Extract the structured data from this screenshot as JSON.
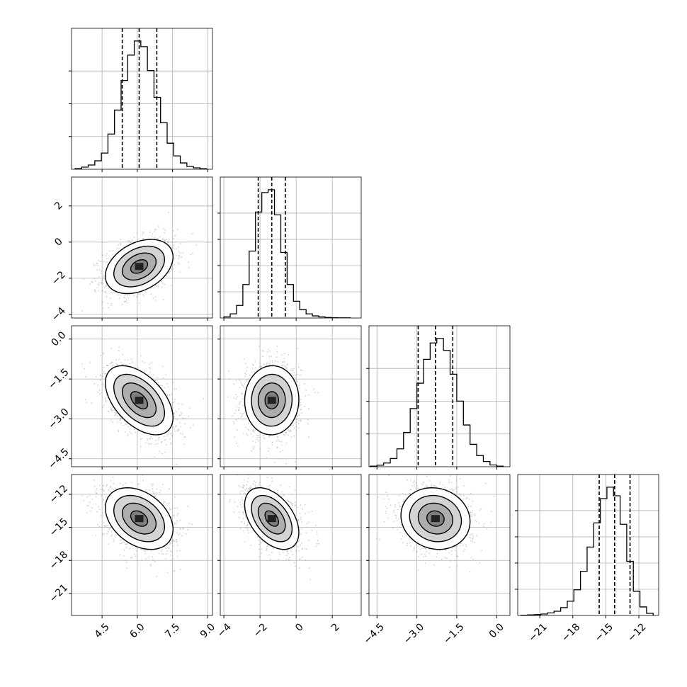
{
  "chart_data": {
    "type": "corner",
    "title": "",
    "variables": [
      {
        "name": "",
        "range": [
          3.2,
          9.2
        ],
        "ticks": [
          4.5,
          6.0,
          7.5,
          9.0
        ],
        "tick_labels": [
          "4.5",
          "6.0",
          "7.5",
          "9.0"
        ],
        "quantiles": [
          5.36,
          6.08,
          6.83
        ],
        "mean": 6.08,
        "sd": 0.72
      },
      {
        "name": "",
        "range": [
          -4.2,
          3.6
        ],
        "ticks": [
          -4,
          -2,
          0,
          2
        ],
        "tick_labels": [
          "−4",
          "−2",
          "0",
          "2"
        ],
        "quantiles": [
          -2.1,
          -1.35,
          -0.6
        ],
        "mean": -1.35,
        "sd": 0.75
      },
      {
        "name": "",
        "range": [
          -4.8,
          0.5
        ],
        "ticks": [
          -4.5,
          -3.0,
          -1.5,
          0.0
        ],
        "tick_labels": [
          "−4.5",
          "−3.0",
          "−1.5",
          "0.0"
        ],
        "quantiles": [
          -2.95,
          -2.3,
          -1.65
        ],
        "mean": -2.3,
        "sd": 0.65
      },
      {
        "name": "",
        "range": [
          -23.0,
          -10.2
        ],
        "ticks": [
          -21,
          -18,
          -15,
          -12
        ],
        "tick_labels": [
          "−21",
          "−18",
          "−15",
          "−12"
        ],
        "quantiles": [
          -15.6,
          -14.2,
          -12.8
        ],
        "mean": -14.2,
        "sd": 1.4
      }
    ],
    "histograms": [
      {
        "variable": 0,
        "edges": [
          3.35,
          3.63,
          3.91,
          4.19,
          4.47,
          4.75,
          5.03,
          5.31,
          5.59,
          5.87,
          6.15,
          6.43,
          6.71,
          6.99,
          7.27,
          7.55,
          7.83,
          8.11,
          8.39,
          8.67,
          8.95
        ],
        "counts": [
          5,
          15,
          30,
          60,
          115,
          250,
          420,
          630,
          810,
          910,
          870,
          700,
          510,
          330,
          185,
          95,
          45,
          20,
          10,
          4
        ],
        "y_ticks": [
          0.25,
          0.5,
          0.75
        ]
      },
      {
        "variable": 1,
        "edges": [
          -4.0,
          -3.65,
          -3.3,
          -2.95,
          -2.6,
          -2.25,
          -1.9,
          -1.55,
          -1.2,
          -0.85,
          -0.5,
          -0.15,
          0.2,
          0.55,
          0.9,
          1.25,
          1.6,
          1.95,
          2.3,
          2.65,
          3.0
        ],
        "counts": [
          8,
          30,
          90,
          240,
          480,
          760,
          900,
          920,
          740,
          470,
          240,
          120,
          60,
          30,
          15,
          8,
          4,
          2,
          1,
          1
        ],
        "y_ticks": [
          0.2,
          0.4,
          0.6,
          0.8
        ]
      },
      {
        "variable": 2,
        "edges": [
          -4.75,
          -4.5,
          -4.25,
          -4.0,
          -3.75,
          -3.5,
          -3.25,
          -3.0,
          -2.75,
          -2.5,
          -2.25,
          -2.0,
          -1.75,
          -1.5,
          -1.25,
          -1.0,
          -0.75,
          -0.5,
          -0.25,
          0.0,
          0.25
        ],
        "counts": [
          4,
          10,
          25,
          55,
          120,
          230,
          390,
          560,
          720,
          830,
          860,
          780,
          620,
          440,
          280,
          150,
          75,
          35,
          12,
          4
        ],
        "y_ticks": [
          0.25,
          0.5,
          0.75
        ]
      },
      {
        "variable": 3,
        "edges": [
          -22.7,
          -22.1,
          -21.5,
          -20.9,
          -20.3,
          -19.7,
          -19.1,
          -18.5,
          -17.9,
          -17.3,
          -16.7,
          -16.1,
          -15.5,
          -14.9,
          -14.3,
          -13.7,
          -13.1,
          -12.5,
          -11.9,
          -11.3,
          -10.7
        ],
        "counts": [
          2,
          4,
          6,
          10,
          18,
          30,
          55,
          100,
          180,
          310,
          480,
          650,
          820,
          900,
          840,
          640,
          380,
          170,
          60,
          15
        ],
        "y_ticks": [
          0.2,
          0.4,
          0.6,
          0.8
        ]
      }
    ],
    "joint": [
      {
        "x": 0,
        "y": 1,
        "mean_x": 6.08,
        "mean_y": -1.35,
        "correlation": 0.35
      },
      {
        "x": 0,
        "y": 2,
        "mean_x": 6.08,
        "mean_y": -2.3,
        "correlation": -0.5
      },
      {
        "x": 1,
        "y": 2,
        "mean_x": -1.35,
        "mean_y": -2.3,
        "correlation": 0.02
      },
      {
        "x": 0,
        "y": 3,
        "mean_x": 6.08,
        "mean_y": -14.2,
        "correlation": -0.35
      },
      {
        "x": 1,
        "y": 3,
        "mean_x": -1.35,
        "mean_y": -14.2,
        "correlation": -0.45
      },
      {
        "x": 2,
        "y": 3,
        "mean_x": -2.3,
        "mean_y": -14.2,
        "correlation": -0.1
      }
    ],
    "contour_levels_sigma": [
      0.5,
      1.0,
      1.5,
      2.0
    ],
    "grid": true,
    "legend": "none"
  }
}
